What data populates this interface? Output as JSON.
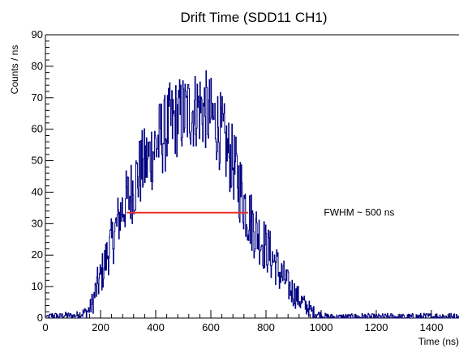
{
  "chart_data": {
    "type": "line",
    "title": "Drift Time (SDD11 CH1)",
    "xlabel": "Time (ns)",
    "ylabel": "Counts / ns",
    "xlim": [
      0,
      1500
    ],
    "ylim": [
      0,
      90
    ],
    "xticks": [
      0,
      200,
      400,
      600,
      800,
      1000,
      1200,
      1400
    ],
    "yticks": [
      0,
      10,
      20,
      30,
      40,
      50,
      60,
      70,
      80,
      90
    ],
    "grid": false,
    "legend": "none",
    "colors": {
      "histogram": "#000080",
      "fwhm_marker": "#e8302a"
    },
    "series": [
      {
        "x": [
          0,
          25,
          50,
          75,
          100,
          125,
          150,
          160,
          170,
          180,
          190,
          200,
          210,
          220,
          230,
          240,
          250,
          260,
          270,
          280,
          290,
          300,
          310,
          320,
          330,
          340,
          350,
          360,
          370,
          380,
          390,
          400,
          410,
          420,
          430,
          440,
          450,
          460,
          470,
          480,
          490,
          500,
          510,
          520,
          530,
          540,
          550,
          560,
          570,
          580,
          590,
          600,
          610,
          620,
          630,
          640,
          650,
          660,
          670,
          680,
          690,
          700,
          710,
          720,
          730,
          740,
          750,
          760,
          770,
          780,
          790,
          800,
          810,
          820,
          830,
          840,
          850,
          860,
          870,
          880,
          890,
          900,
          910,
          920,
          930,
          940,
          950,
          960,
          970,
          980,
          990,
          1000,
          1010,
          1020,
          1030,
          1040,
          1050,
          1100,
          1150,
          1200,
          1250,
          1300,
          1350,
          1400,
          1450,
          1500
        ],
        "values": [
          0.5,
          0.8,
          0.6,
          0.9,
          0.7,
          1.2,
          2,
          3,
          5,
          8,
          11,
          13,
          16,
          19,
          22,
          24,
          27,
          30,
          33,
          35,
          37,
          38,
          40,
          42,
          44,
          46,
          48,
          49,
          50,
          52,
          53,
          55,
          56,
          58,
          58,
          60,
          62,
          62,
          63,
          64,
          64,
          65,
          65,
          66,
          66,
          66,
          67,
          67,
          66,
          66,
          65,
          64,
          63,
          62,
          60,
          58,
          55,
          53,
          51,
          49,
          46,
          43,
          40,
          37,
          34,
          32,
          30,
          28,
          27,
          25,
          24,
          22,
          21,
          19,
          18,
          16,
          14,
          13,
          12,
          10,
          9,
          8,
          7,
          6,
          5,
          4,
          3.5,
          2.5,
          2,
          1.5,
          1,
          0.8,
          0.6,
          0.5,
          0.4,
          0.3,
          0.3,
          0.3,
          0.4,
          0.3,
          0.4,
          0.3,
          0.4,
          0.4,
          0.4,
          0.3
        ],
        "noise": [
          0,
          1.2,
          0.9,
          1.1,
          0.8,
          1.5,
          2,
          2.5,
          4,
          5,
          6,
          6,
          7,
          7,
          8,
          8,
          9,
          9,
          9,
          10,
          10,
          11,
          11,
          11,
          12,
          12,
          12,
          12,
          12,
          12,
          13,
          13,
          13,
          13,
          13,
          13,
          13,
          13,
          13,
          13,
          13,
          13,
          13,
          13,
          13,
          13,
          13,
          13,
          13,
          13,
          13,
          13,
          13,
          13,
          13,
          13,
          13,
          12,
          12,
          12,
          12,
          12,
          12,
          11,
          11,
          10,
          10,
          10,
          9,
          9,
          9,
          8,
          8,
          8,
          7,
          7,
          7,
          6,
          6,
          5,
          5,
          5,
          4,
          4,
          4,
          3,
          3,
          2.5,
          2,
          2,
          1.5,
          1.2,
          1,
          1,
          1,
          1,
          1,
          1,
          1.2,
          1,
          1.2,
          1,
          1.2,
          1.2,
          1.5,
          1
        ]
      }
    ],
    "annotations": [
      {
        "text": "FWHM ~ 500 ns",
        "x": 1010,
        "y": 33.5
      }
    ],
    "fwhm_marker": {
      "y": 33.5,
      "x_start": 295,
      "x_end": 735
    }
  }
}
